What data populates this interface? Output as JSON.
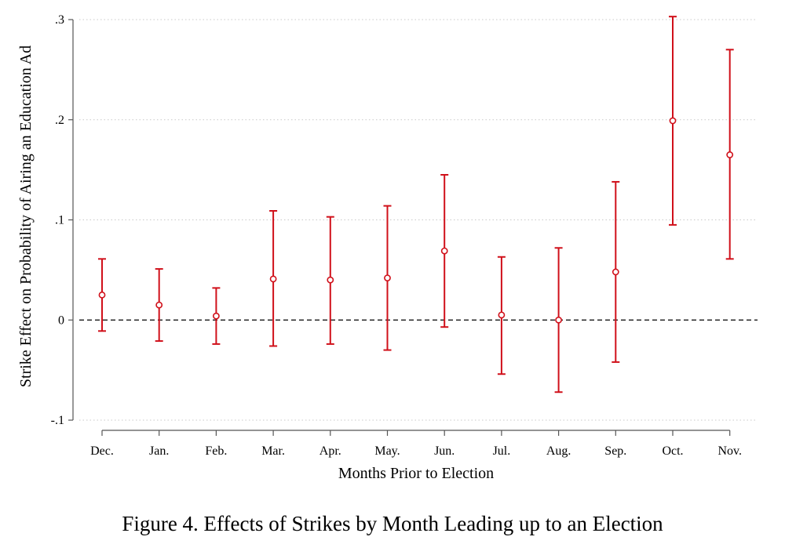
{
  "figure": {
    "caption": "Figure 4. Effects of Strikes by Month Leading up to an Election"
  },
  "chart_data": {
    "type": "scatter",
    "subtype": "coefficient-plot-with-error-bars",
    "title": "",
    "xlabel": "Months Prior to Election",
    "ylabel": "Strike Effect on Probability of Airing an Education Ad",
    "categories": [
      "Dec.",
      "Jan.",
      "Feb.",
      "Mar.",
      "Apr.",
      "May.",
      "Jun.",
      "Jul.",
      "Aug.",
      "Sep.",
      "Oct.",
      "Nov."
    ],
    "series": [
      {
        "name": "Strike effect",
        "estimates": [
          0.025,
          0.015,
          0.004,
          0.041,
          0.04,
          0.042,
          0.069,
          0.005,
          0.0,
          0.048,
          0.199,
          0.165
        ],
        "ci_lower": [
          -0.011,
          -0.021,
          -0.024,
          -0.026,
          -0.024,
          -0.03,
          -0.007,
          -0.054,
          -0.072,
          -0.042,
          0.095,
          0.061
        ],
        "ci_upper": [
          0.061,
          0.051,
          0.032,
          0.109,
          0.103,
          0.114,
          0.145,
          0.063,
          0.072,
          0.138,
          0.303,
          0.27
        ]
      }
    ],
    "ylim": [
      -0.1,
      0.3
    ],
    "yticks": [
      -0.1,
      0,
      0.1,
      0.2,
      0.3
    ],
    "ytick_labels": [
      "-.1",
      "0",
      ".1",
      ".2",
      ".3"
    ],
    "reference_line": {
      "y": 0,
      "style": "dashed"
    },
    "grid": true,
    "legend": "none",
    "colors": {
      "series": "#d0101a",
      "reference_line": "#000000",
      "grid": "#c8c8c8",
      "axis": "#555555"
    }
  }
}
